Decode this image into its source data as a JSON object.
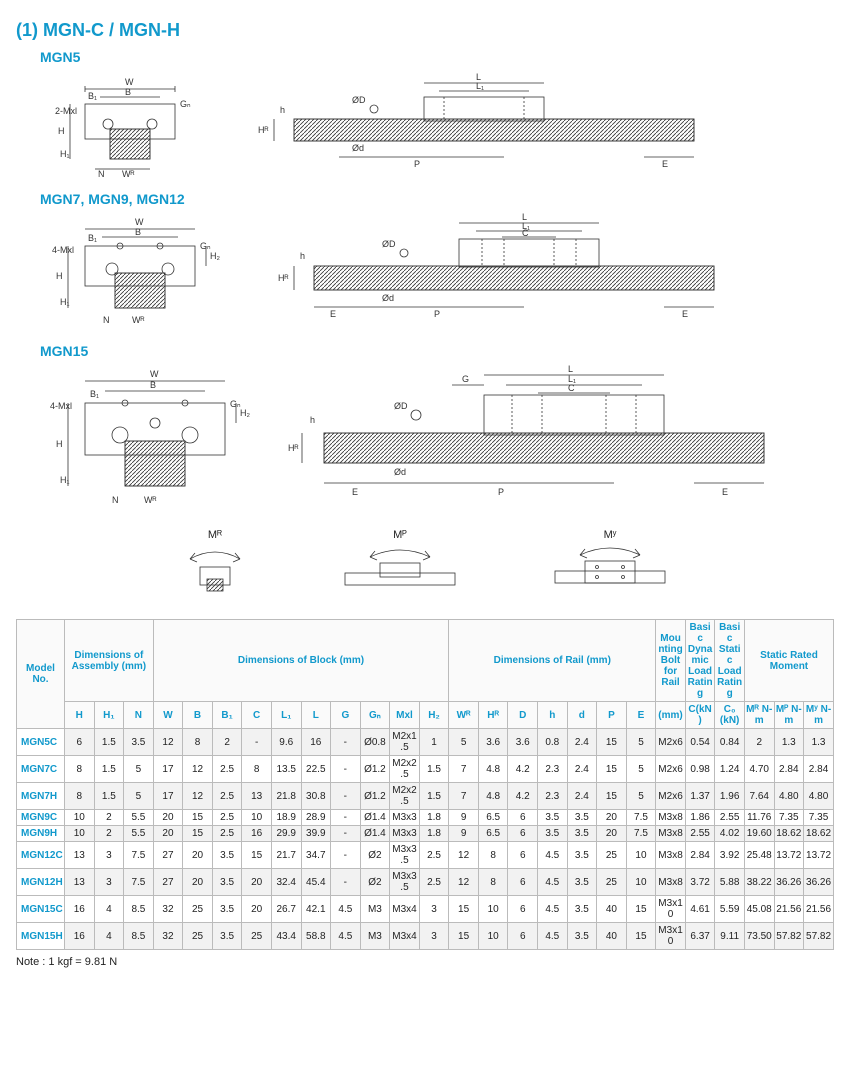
{
  "colors": {
    "accent": "#1199cc",
    "text": "#222222",
    "grid": "#bbbbbb",
    "row_odd": "#f2f2f2",
    "row_even": "#ffffff",
    "header_bg": "#fafafa",
    "bg": "#ffffff"
  },
  "section_title": "(1) MGN-C / MGN-H",
  "groups": [
    {
      "label": "MGN5"
    },
    {
      "label": "MGN7, MGN9, MGN12"
    },
    {
      "label": "MGN15"
    }
  ],
  "dim_labels": {
    "cross_section": [
      "W",
      "B",
      "B₁",
      "Gₙ",
      "2-Mxl",
      "4-Mxl",
      "H",
      "H₁",
      "H₂",
      "N",
      "Wᴿ"
    ],
    "side_view": [
      "L",
      "L₁",
      "C",
      "ØD",
      "Ød",
      "h",
      "Hᴿ",
      "E",
      "P",
      "G"
    ]
  },
  "moments": [
    {
      "label": "Mᴿ"
    },
    {
      "label": "Mᴾ"
    },
    {
      "label": "Mʸ"
    }
  ],
  "table": {
    "group_headers": [
      {
        "label": "Model No.",
        "span": 1
      },
      {
        "label": "Dimensions of Assembly (mm)",
        "span": 3
      },
      {
        "label": "Dimensions of Block (mm)",
        "span": 10
      },
      {
        "label": "Dimensions of Rail (mm)",
        "span": 7
      },
      {
        "label": "Mounting Bolt for Rail",
        "span": 1
      },
      {
        "label": "Basic Dynamic Load Rating",
        "span": 1
      },
      {
        "label": "Basic Static Load Rating",
        "span": 1
      },
      {
        "label": "Static Rated Moment",
        "span": 3
      }
    ],
    "sub_headers": [
      "",
      "H",
      "H₁",
      "N",
      "W",
      "B",
      "B₁",
      "C",
      "L₁",
      "L",
      "G",
      "Gₙ",
      "Mxl",
      "H₂",
      "Wᴿ",
      "Hᴿ",
      "D",
      "h",
      "d",
      "P",
      "E",
      "(mm)",
      "C(kN)",
      "C₀ (kN)",
      "Mᴿ N-m",
      "Mᴾ N-m",
      "Mʸ N-m"
    ],
    "rows": [
      [
        "MGN5C",
        "6",
        "1.5",
        "3.5",
        "12",
        "8",
        "2",
        "-",
        "9.6",
        "16",
        "-",
        "Ø0.8",
        "M2x1.5",
        "1",
        "5",
        "3.6",
        "3.6",
        "0.8",
        "2.4",
        "15",
        "5",
        "M2x6",
        "0.54",
        "0.84",
        "2",
        "1.3",
        "1.3"
      ],
      [
        "MGN7C",
        "8",
        "1.5",
        "5",
        "17",
        "12",
        "2.5",
        "8",
        "13.5",
        "22.5",
        "-",
        "Ø1.2",
        "M2x2.5",
        "1.5",
        "7",
        "4.8",
        "4.2",
        "2.3",
        "2.4",
        "15",
        "5",
        "M2x6",
        "0.98",
        "1.24",
        "4.70",
        "2.84",
        "2.84"
      ],
      [
        "MGN7H",
        "8",
        "1.5",
        "5",
        "17",
        "12",
        "2.5",
        "13",
        "21.8",
        "30.8",
        "-",
        "Ø1.2",
        "M2x2.5",
        "1.5",
        "7",
        "4.8",
        "4.2",
        "2.3",
        "2.4",
        "15",
        "5",
        "M2x6",
        "1.37",
        "1.96",
        "7.64",
        "4.80",
        "4.80"
      ],
      [
        "MGN9C",
        "10",
        "2",
        "5.5",
        "20",
        "15",
        "2.5",
        "10",
        "18.9",
        "28.9",
        "-",
        "Ø1.4",
        "M3x3",
        "1.8",
        "9",
        "6.5",
        "6",
        "3.5",
        "3.5",
        "20",
        "7.5",
        "M3x8",
        "1.86",
        "2.55",
        "11.76",
        "7.35",
        "7.35"
      ],
      [
        "MGN9H",
        "10",
        "2",
        "5.5",
        "20",
        "15",
        "2.5",
        "16",
        "29.9",
        "39.9",
        "-",
        "Ø1.4",
        "M3x3",
        "1.8",
        "9",
        "6.5",
        "6",
        "3.5",
        "3.5",
        "20",
        "7.5",
        "M3x8",
        "2.55",
        "4.02",
        "19.60",
        "18.62",
        "18.62"
      ],
      [
        "MGN12C",
        "13",
        "3",
        "7.5",
        "27",
        "20",
        "3.5",
        "15",
        "21.7",
        "34.7",
        "-",
        "Ø2",
        "M3x3.5",
        "2.5",
        "12",
        "8",
        "6",
        "4.5",
        "3.5",
        "25",
        "10",
        "M3x8",
        "2.84",
        "3.92",
        "25.48",
        "13.72",
        "13.72"
      ],
      [
        "MGN12H",
        "13",
        "3",
        "7.5",
        "27",
        "20",
        "3.5",
        "20",
        "32.4",
        "45.4",
        "-",
        "Ø2",
        "M3x3.5",
        "2.5",
        "12",
        "8",
        "6",
        "4.5",
        "3.5",
        "25",
        "10",
        "M3x8",
        "3.72",
        "5.88",
        "38.22",
        "36.26",
        "36.26"
      ],
      [
        "MGN15C",
        "16",
        "4",
        "8.5",
        "32",
        "25",
        "3.5",
        "20",
        "26.7",
        "42.1",
        "4.5",
        "M3",
        "M3x4",
        "3",
        "15",
        "10",
        "6",
        "4.5",
        "3.5",
        "40",
        "15",
        "M3x10",
        "4.61",
        "5.59",
        "45.08",
        "21.56",
        "21.56"
      ],
      [
        "MGN15H",
        "16",
        "4",
        "8.5",
        "32",
        "25",
        "3.5",
        "25",
        "43.4",
        "58.8",
        "4.5",
        "M3",
        "M3x4",
        "3",
        "15",
        "10",
        "6",
        "4.5",
        "3.5",
        "40",
        "15",
        "M3x10",
        "6.37",
        "9.11",
        "73.50",
        "57.82",
        "57.82"
      ]
    ],
    "merges": {
      "comment": "Pairs of rows share assembly/rail cells in the source; rendered flat here for simplicity."
    }
  },
  "footnote": "Note : 1 kgf = 9.81 N"
}
